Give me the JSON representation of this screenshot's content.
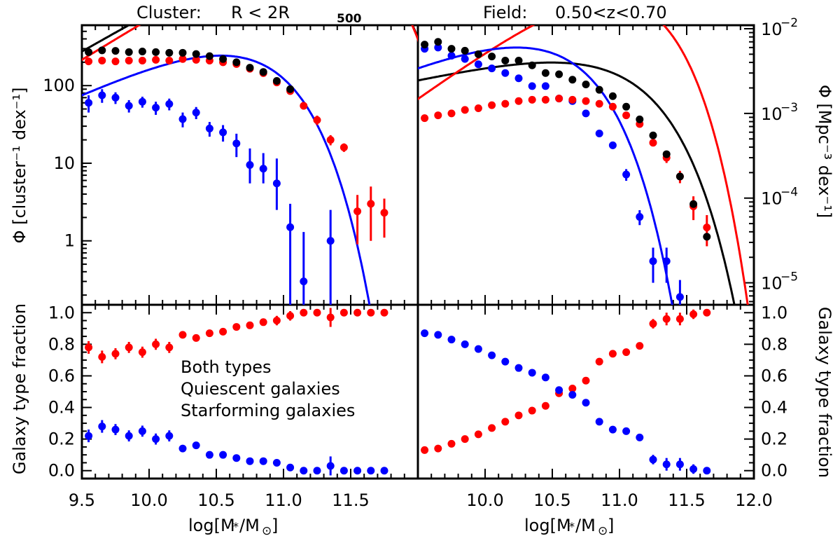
{
  "chart_data": {
    "type": "scatter",
    "titles": {
      "cluster_prefix": "Cluster:",
      "cluster_condition": "R < 2R",
      "cluster_subscript": "500",
      "field_prefix": "Field:",
      "field_condition": "0.50<z<0.70"
    },
    "xlabel": {
      "main": "log[M",
      "star": "*",
      "mid": "/M",
      "sun": "⊙",
      "close": "]"
    },
    "ylabel_cluster": "Φ [cluster⁻¹ dex⁻¹]",
    "ylabel_field": "Φ [Mpc⁻³ dex⁻¹]",
    "ylabel_fraction": "Galaxy type fraction",
    "legend": [
      {
        "label": "Both types",
        "color": "#000000"
      },
      {
        "label": "Quiescent galaxies",
        "color": "#ff0000"
      },
      {
        "label": "Starforming galaxies",
        "color": "#0000ff"
      }
    ],
    "xlim_cluster": [
      9.5,
      12.0
    ],
    "xlim_field": [
      9.5,
      12.0
    ],
    "ylim_cluster_log": [
      0.15,
      600
    ],
    "ylim_field_log": [
      5.5e-06,
      0.011
    ],
    "ylim_fraction": [
      -0.05,
      1.05
    ],
    "x_ticklabels_cluster": [
      "9.5",
      "10.0",
      "10.5",
      "11.0",
      "11.5"
    ],
    "x_ticklabels_field": [
      "10.0",
      "10.5",
      "11.0",
      "11.5",
      "12.0"
    ],
    "y_ticklabels_cluster": [
      {
        "v": 1,
        "t": "1"
      },
      {
        "v": 10,
        "t": "10"
      },
      {
        "v": 100,
        "t": "100"
      }
    ],
    "y_ticklabels_field": [
      {
        "v": 0.01,
        "base": "10",
        "exp": "−2"
      },
      {
        "v": 0.001,
        "base": "10",
        "exp": "−3"
      },
      {
        "v": 0.0001,
        "base": "10",
        "exp": "−4"
      },
      {
        "v": 1e-05,
        "base": "10",
        "exp": "−5"
      }
    ],
    "fraction_ticklabels": [
      "0.0",
      "0.2",
      "0.4",
      "0.6",
      "0.8",
      "1.0"
    ],
    "cluster_smf": {
      "both": {
        "x": [
          9.55,
          9.65,
          9.75,
          9.85,
          9.95,
          10.05,
          10.15,
          10.25,
          10.35,
          10.45,
          10.55,
          10.65,
          10.75,
          10.85,
          10.95,
          11.05
        ],
        "y": [
          270,
          285,
          280,
          270,
          275,
          270,
          265,
          265,
          255,
          240,
          220,
          200,
          170,
          150,
          115,
          90
        ],
        "fit": {
          "phi": 275,
          "alpha": 0.0,
          "mc": 11.27
        }
      },
      "quiescent": {
        "x": [
          9.55,
          9.65,
          9.75,
          9.85,
          9.95,
          10.05,
          10.15,
          10.25,
          10.35,
          10.45,
          10.55,
          10.65,
          10.75,
          10.85,
          10.95,
          11.05,
          11.15,
          11.25,
          11.35,
          11.45,
          11.55,
          11.65,
          11.75
        ],
        "y": [
          205,
          210,
          205,
          210,
          210,
          215,
          210,
          220,
          215,
          210,
          200,
          190,
          165,
          145,
          110,
          85,
          55,
          36,
          20,
          16,
          2.4,
          3.0,
          2.3
        ],
        "err": [
          8,
          8,
          8,
          8,
          8,
          8,
          8,
          8,
          8,
          8,
          8,
          8,
          8,
          8,
          8,
          8,
          6,
          5,
          3,
          2,
          1.5,
          2,
          1.2
        ],
        "fit": {
          "phi": 215,
          "alpha": 0.08,
          "mc": 11.25
        }
      },
      "starforming": {
        "x": [
          9.55,
          9.65,
          9.75,
          9.85,
          9.95,
          10.05,
          10.15,
          10.25,
          10.35,
          10.45,
          10.55,
          10.65,
          10.75,
          10.85,
          10.95,
          11.05,
          11.15,
          11.35
        ],
        "y": [
          60,
          75,
          70,
          55,
          62,
          52,
          58,
          37,
          45,
          28,
          25,
          18,
          9.5,
          8.5,
          5.5,
          1.5,
          0.3,
          1.0
        ],
        "err_lo": [
          15,
          15,
          12,
          10,
          10,
          10,
          10,
          8,
          8,
          6,
          6,
          6,
          4,
          3,
          3,
          1.35,
          0.28,
          0.85
        ],
        "err_hi": [
          15,
          15,
          12,
          10,
          10,
          10,
          10,
          8,
          8,
          6,
          6,
          6,
          6,
          5,
          6,
          1.5,
          1.0,
          1.5
        ],
        "fit": {
          "phi": 75,
          "alpha": -0.2,
          "mc": 10.63
        }
      }
    },
    "field_smf": {
      "both": {
        "x": [
          9.55,
          9.65,
          9.75,
          9.85,
          9.95,
          10.05,
          10.15,
          10.25,
          10.35,
          10.45,
          10.55,
          10.65,
          10.75,
          10.85,
          10.95,
          11.05,
          11.15,
          11.25,
          11.35,
          11.45,
          11.55,
          11.65
        ],
        "y": [
          0.0065,
          0.007,
          0.0058,
          0.0055,
          0.005,
          0.0047,
          0.0042,
          0.0042,
          0.0037,
          0.003,
          0.0029,
          0.0025,
          0.0022,
          0.0019,
          0.0016,
          0.0012,
          0.00085,
          0.00055,
          0.00033,
          0.00018,
          8.5e-05,
          3.5e-05
        ],
        "fit": {
          "phi": 0.00245,
          "alpha": -0.65,
          "mc": 10.95
        }
      },
      "quiescent": {
        "x": [
          9.55,
          9.65,
          9.75,
          9.85,
          9.95,
          10.05,
          10.15,
          10.25,
          10.35,
          10.45,
          10.55,
          10.65,
          10.75,
          10.85,
          10.95,
          11.05,
          11.15,
          11.25,
          11.35,
          11.45,
          11.55,
          11.65
        ],
        "y": [
          0.00088,
          0.00095,
          0.001,
          0.0011,
          0.00115,
          0.00125,
          0.0013,
          0.0014,
          0.00145,
          0.00145,
          0.0015,
          0.00145,
          0.0014,
          0.0013,
          0.0012,
          0.00095,
          0.00075,
          0.00045,
          0.0003,
          0.00018,
          8e-05,
          4.5e-05
        ],
        "err": [
          5e-05,
          5e-05,
          5e-05,
          5e-05,
          5e-05,
          5e-05,
          5e-05,
          5e-05,
          5e-05,
          5e-05,
          5e-05,
          5e-05,
          5e-05,
          5e-05,
          5e-05,
          5e-05,
          5e-05,
          4e-05,
          4e-05,
          3e-05,
          2.5e-05,
          1.8e-05
        ],
        "fit": {
          "phi": 0.00148,
          "alpha": 0.15,
          "mc": 10.87
        }
      },
      "starforming": {
        "x": [
          9.55,
          9.65,
          9.75,
          9.85,
          9.95,
          10.05,
          10.15,
          10.25,
          10.35,
          10.45,
          10.55,
          10.65,
          10.75,
          10.85,
          10.95,
          11.05,
          11.15,
          11.25,
          11.35,
          11.45
        ],
        "y": [
          0.0058,
          0.006,
          0.0048,
          0.0044,
          0.0038,
          0.0034,
          0.003,
          0.0026,
          0.0021,
          0.0021,
          0.0015,
          0.0014,
          0.001,
          0.00058,
          0.00042,
          0.00019,
          6e-05,
          1.8e-05,
          1.8e-05,
          6.8e-06
        ],
        "err": [
          0.00015,
          0.00015,
          0.00015,
          0.00015,
          0.00015,
          0.00012,
          0.0001,
          0.0001,
          0.0001,
          0.0001,
          8e-05,
          8e-05,
          7e-05,
          5e-05,
          4e-05,
          3e-05,
          1.2e-05,
          8e-06,
          8e-06,
          4e-06
        ],
        "fit": {
          "phi": 0.0034,
          "alpha": -0.35,
          "mc": 10.42
        }
      }
    },
    "cluster_fraction": {
      "x": [
        9.55,
        9.65,
        9.75,
        9.85,
        9.95,
        10.05,
        10.15,
        10.25,
        10.35,
        10.45,
        10.55,
        10.65,
        10.75,
        10.85,
        10.95,
        11.05,
        11.15,
        11.25,
        11.35,
        11.45,
        11.55,
        11.65,
        11.75
      ],
      "quiescent": [
        0.78,
        0.72,
        0.74,
        0.78,
        0.75,
        0.8,
        0.78,
        0.86,
        0.84,
        0.87,
        0.88,
        0.91,
        0.92,
        0.94,
        0.95,
        0.98,
        1.0,
        1.0,
        0.97,
        1.0,
        1.0,
        1.0,
        1.0
      ],
      "q_err": [
        0.04,
        0.04,
        0.035,
        0.035,
        0.035,
        0.035,
        0.035,
        0.02,
        0.02,
        0.02,
        0.015,
        0.02,
        0.02,
        0.02,
        0.03,
        0.03,
        0.02,
        0.02,
        0.06,
        0.02,
        0.02,
        0.02,
        0.02
      ],
      "starforming": [
        0.22,
        0.28,
        0.26,
        0.22,
        0.25,
        0.2,
        0.22,
        0.14,
        0.16,
        0.1,
        0.1,
        0.08,
        0.06,
        0.06,
        0.05,
        0.02,
        0.0,
        0.0,
        0.03,
        0.0,
        0.0,
        0.0,
        0.0
      ],
      "s_err": [
        0.04,
        0.04,
        0.035,
        0.035,
        0.035,
        0.035,
        0.035,
        0.02,
        0.02,
        0.02,
        0.015,
        0.02,
        0.02,
        0.02,
        0.02,
        0.02,
        0.01,
        0.01,
        0.06,
        0.01,
        0.01,
        0.01,
        0.01
      ]
    },
    "field_fraction": {
      "x": [
        9.55,
        9.65,
        9.75,
        9.85,
        9.95,
        10.05,
        10.15,
        10.25,
        10.35,
        10.45,
        10.55,
        10.65,
        10.75,
        10.85,
        10.95,
        11.05,
        11.15,
        11.25,
        11.35,
        11.45,
        11.55,
        11.65
      ],
      "quiescent": [
        0.13,
        0.14,
        0.17,
        0.2,
        0.23,
        0.27,
        0.31,
        0.35,
        0.38,
        0.41,
        0.49,
        0.52,
        0.57,
        0.69,
        0.74,
        0.75,
        0.79,
        0.93,
        0.96,
        0.96,
        0.99,
        1.0
      ],
      "q_err": [
        0.01,
        0.01,
        0.01,
        0.01,
        0.01,
        0.01,
        0.01,
        0.01,
        0.01,
        0.01,
        0.015,
        0.015,
        0.015,
        0.015,
        0.02,
        0.02,
        0.02,
        0.03,
        0.04,
        0.04,
        0.03,
        0.02
      ],
      "starforming": [
        0.87,
        0.86,
        0.83,
        0.8,
        0.77,
        0.73,
        0.69,
        0.65,
        0.62,
        0.59,
        0.51,
        0.48,
        0.43,
        0.31,
        0.26,
        0.25,
        0.21,
        0.07,
        0.04,
        0.04,
        0.01,
        0.0
      ],
      "s_err": [
        0.01,
        0.01,
        0.01,
        0.01,
        0.01,
        0.01,
        0.01,
        0.01,
        0.01,
        0.01,
        0.015,
        0.015,
        0.015,
        0.015,
        0.02,
        0.02,
        0.02,
        0.03,
        0.04,
        0.04,
        0.03,
        0.02
      ]
    }
  }
}
